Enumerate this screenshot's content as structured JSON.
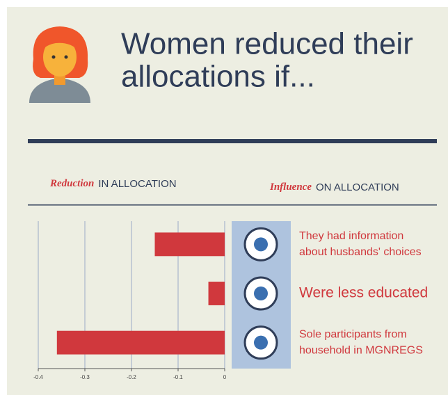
{
  "chart_data": {
    "type": "hbar",
    "title": [
      "Women reduced their",
      "allocations if..."
    ],
    "value_axis_label": {
      "emphasis": "Reduction",
      "text": "IN ALLOCATION"
    },
    "category_axis_label": {
      "emphasis": "Influence",
      "text": "ON ALLOCATION"
    },
    "categories": [
      [
        "They had information",
        "about husbands' choices"
      ],
      [
        "Were less educated"
      ],
      [
        "Sole participants from",
        "household in MGNREGS"
      ]
    ],
    "values": [
      -0.15,
      -0.035,
      -0.36
    ],
    "color": "#d0383d",
    "xlim": [
      -0.4,
      0
    ],
    "xticks": [
      -0.4,
      -0.3,
      -0.2,
      -0.1,
      0
    ],
    "grid": true
  }
}
